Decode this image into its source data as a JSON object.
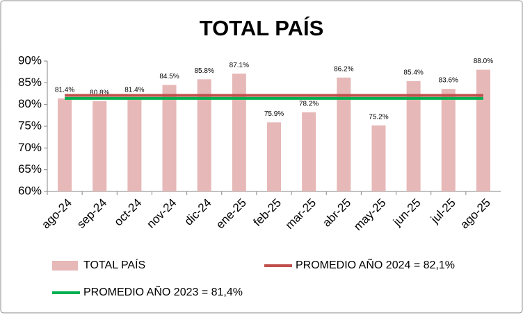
{
  "chart_data": {
    "type": "bar",
    "title": "TOTAL PAÍS",
    "categories": [
      "ago-24",
      "sep-24",
      "oct-24",
      "nov-24",
      "dic-24",
      "ene-25",
      "feb-25",
      "mar-25",
      "abr-25",
      "may-25",
      "jun-25",
      "jul-25",
      "ago-25"
    ],
    "series": [
      {
        "name": "TOTAL PAÍS",
        "type": "bar",
        "color": "#e6b8b7",
        "values": [
          81.4,
          80.8,
          81.4,
          84.5,
          85.8,
          87.1,
          75.9,
          78.2,
          86.2,
          75.2,
          85.4,
          83.6,
          88.0
        ],
        "value_labels": [
          "81.4%",
          "80.8%",
          "81.4%",
          "84.5%",
          "85.8%",
          "87.1%",
          "75.9%",
          "78.2%",
          "86.2%",
          "75.2%",
          "85.4%",
          "83.6%",
          "88.0%"
        ]
      },
      {
        "name": "PROMEDIO AÑO 2024 = 82,1%",
        "type": "line",
        "color": "#c0504d",
        "values": [
          82.1,
          82.1,
          82.1,
          82.1,
          82.1,
          82.1,
          82.1,
          82.1,
          82.1,
          82.1,
          82.1,
          82.1,
          82.1
        ]
      },
      {
        "name": "PROMEDIO AÑO 2023 = 81,4%",
        "type": "line",
        "color": "#00b050",
        "values": [
          81.4,
          81.4,
          81.4,
          81.4,
          81.4,
          81.4,
          81.4,
          81.4,
          81.4,
          81.4,
          81.4,
          81.4,
          81.4
        ]
      }
    ],
    "ylim": [
      60,
      90
    ],
    "yticks": [
      {
        "value": 60,
        "label": "60%"
      },
      {
        "value": 65,
        "label": "65%"
      },
      {
        "value": 70,
        "label": "70%"
      },
      {
        "value": 75,
        "label": "75%"
      },
      {
        "value": 80,
        "label": "80%"
      },
      {
        "value": 85,
        "label": "85%"
      },
      {
        "value": 90,
        "label": "90%"
      }
    ],
    "grid": false
  }
}
